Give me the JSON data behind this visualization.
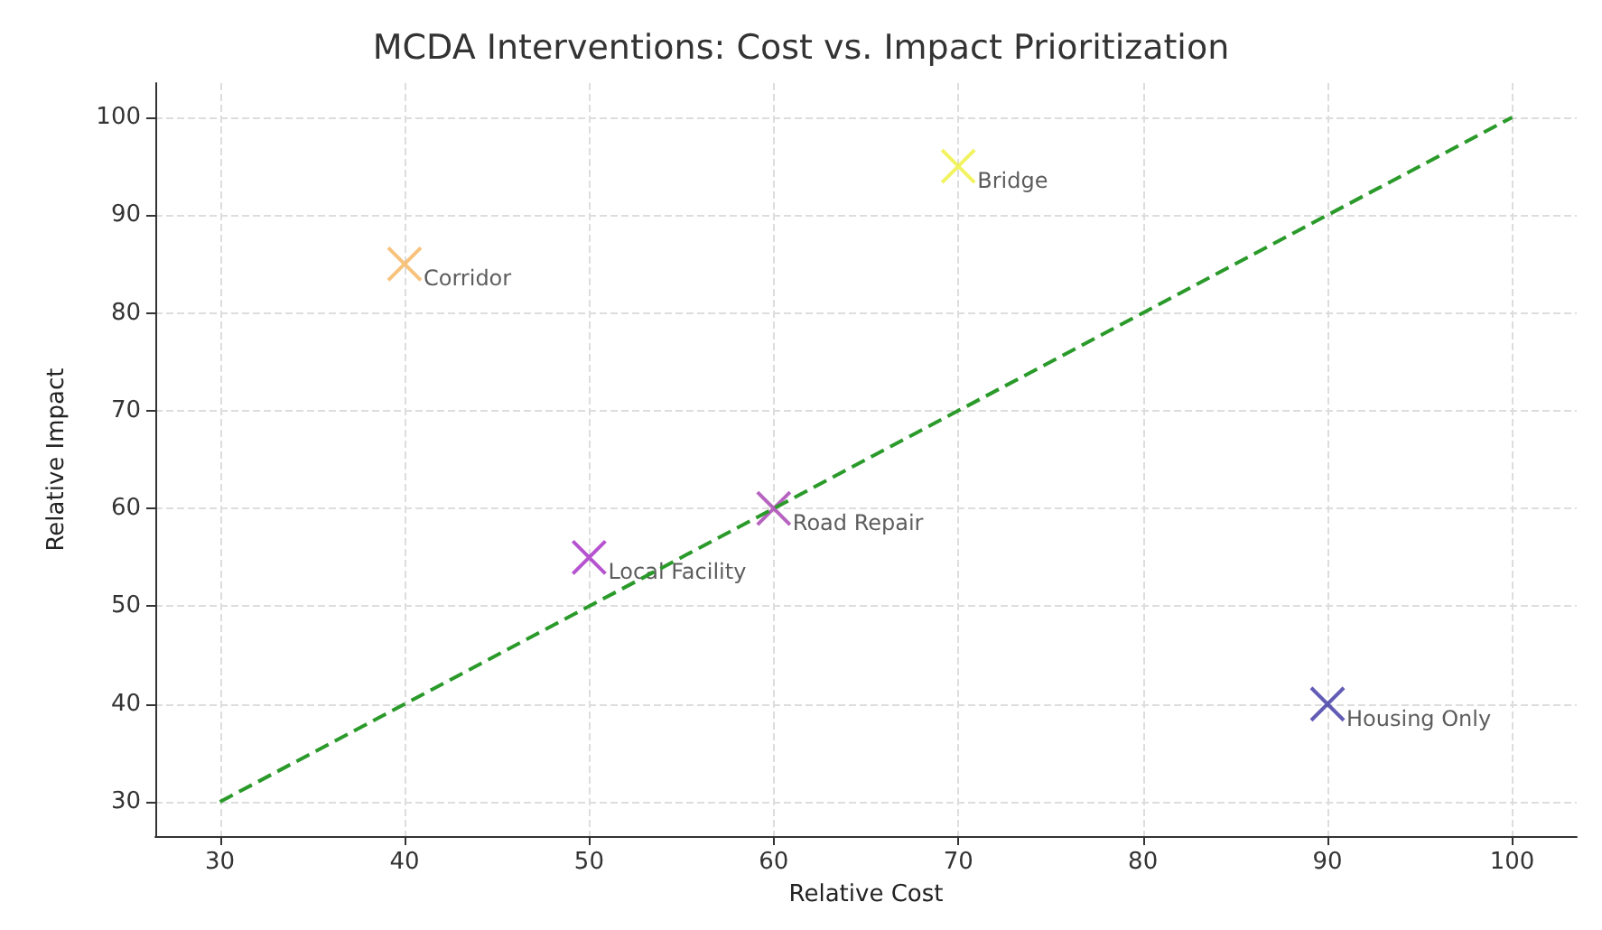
{
  "chart_data": {
    "type": "scatter",
    "title": "MCDA Interventions: Cost vs. Impact Prioritization",
    "xlabel": "Relative Cost",
    "ylabel": "Relative Impact",
    "xlim": [
      26.5,
      103.5
    ],
    "xticks": [
      30,
      40,
      50,
      60,
      70,
      80,
      90,
      100
    ],
    "ylim": [
      26.5,
      103.5
    ],
    "yticks": [
      30,
      40,
      50,
      60,
      70,
      80,
      90,
      100
    ],
    "grid": true,
    "marker": "cross",
    "series": [
      {
        "name": "Corridor",
        "color": "#f5b45c",
        "x": [
          40
        ],
        "values": [
          85
        ]
      },
      {
        "name": "Bridge",
        "color": "#eef03a",
        "x": [
          70
        ],
        "values": [
          95
        ]
      },
      {
        "name": "Road Repair",
        "color": "#a53cb0",
        "x": [
          60
        ],
        "values": [
          60
        ]
      },
      {
        "name": "Local Facility",
        "color": "#a428c4",
        "x": [
          50
        ],
        "values": [
          55
        ]
      },
      {
        "name": "Housing Only",
        "color": "#3b33a2",
        "x": [
          90
        ],
        "values": [
          40
        ]
      },
      {
        "type": "line",
        "color": "#2a9a2a",
        "x": [
          30,
          100
        ],
        "values": [
          30,
          100
        ],
        "marker": "none",
        "line_style": "dashed"
      }
    ]
  }
}
